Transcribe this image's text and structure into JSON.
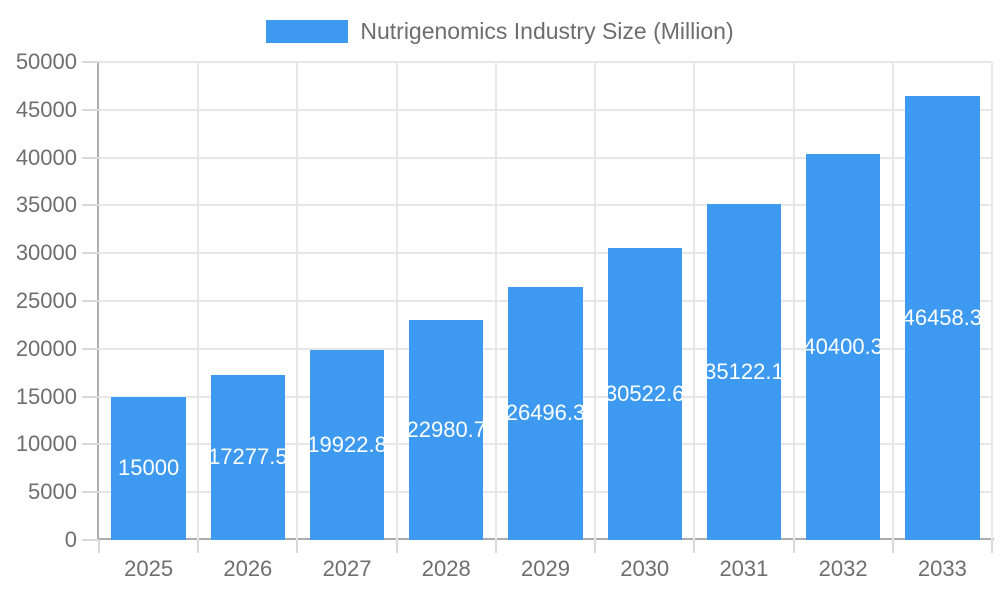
{
  "chart_data": {
    "type": "bar",
    "title": "",
    "legend": "Nutrigenomics Industry Size (Million)",
    "legend_position": "top",
    "categories": [
      "2025",
      "2026",
      "2027",
      "2028",
      "2029",
      "2030",
      "2031",
      "2032",
      "2033"
    ],
    "values": [
      15000,
      17277.5,
      19922.8,
      22980.7,
      26496.3,
      30522.6,
      35122.1,
      40400.3,
      46458.3
    ],
    "value_labels": [
      "15000",
      "17277.5",
      "19922.8",
      "22980.7",
      "26496.3",
      "30522.6",
      "35122.1",
      "40400.3",
      "46458.3"
    ],
    "xlabel": "",
    "ylabel": "",
    "ylim": [
      0,
      50000
    ],
    "ytick_step": 5000,
    "yticks": [
      0,
      5000,
      10000,
      15000,
      20000,
      25000,
      30000,
      35000,
      40000,
      45000,
      50000
    ],
    "ytick_labels": [
      "0",
      "5000",
      "10000",
      "15000",
      "20000",
      "25000",
      "30000",
      "35000",
      "40000",
      "45000",
      "50000"
    ],
    "grid": true,
    "bar_width_fraction": 0.75
  },
  "colors": {
    "bar": "#3D9AF0",
    "bar_label": "#FFFFFF",
    "axis_line": "#ADADAD",
    "grid_line": "#E7E7E7",
    "tick_mark": "#D9D9D9",
    "axis_text": "#6E6E6E",
    "legend_text": "#6D6D6D"
  }
}
